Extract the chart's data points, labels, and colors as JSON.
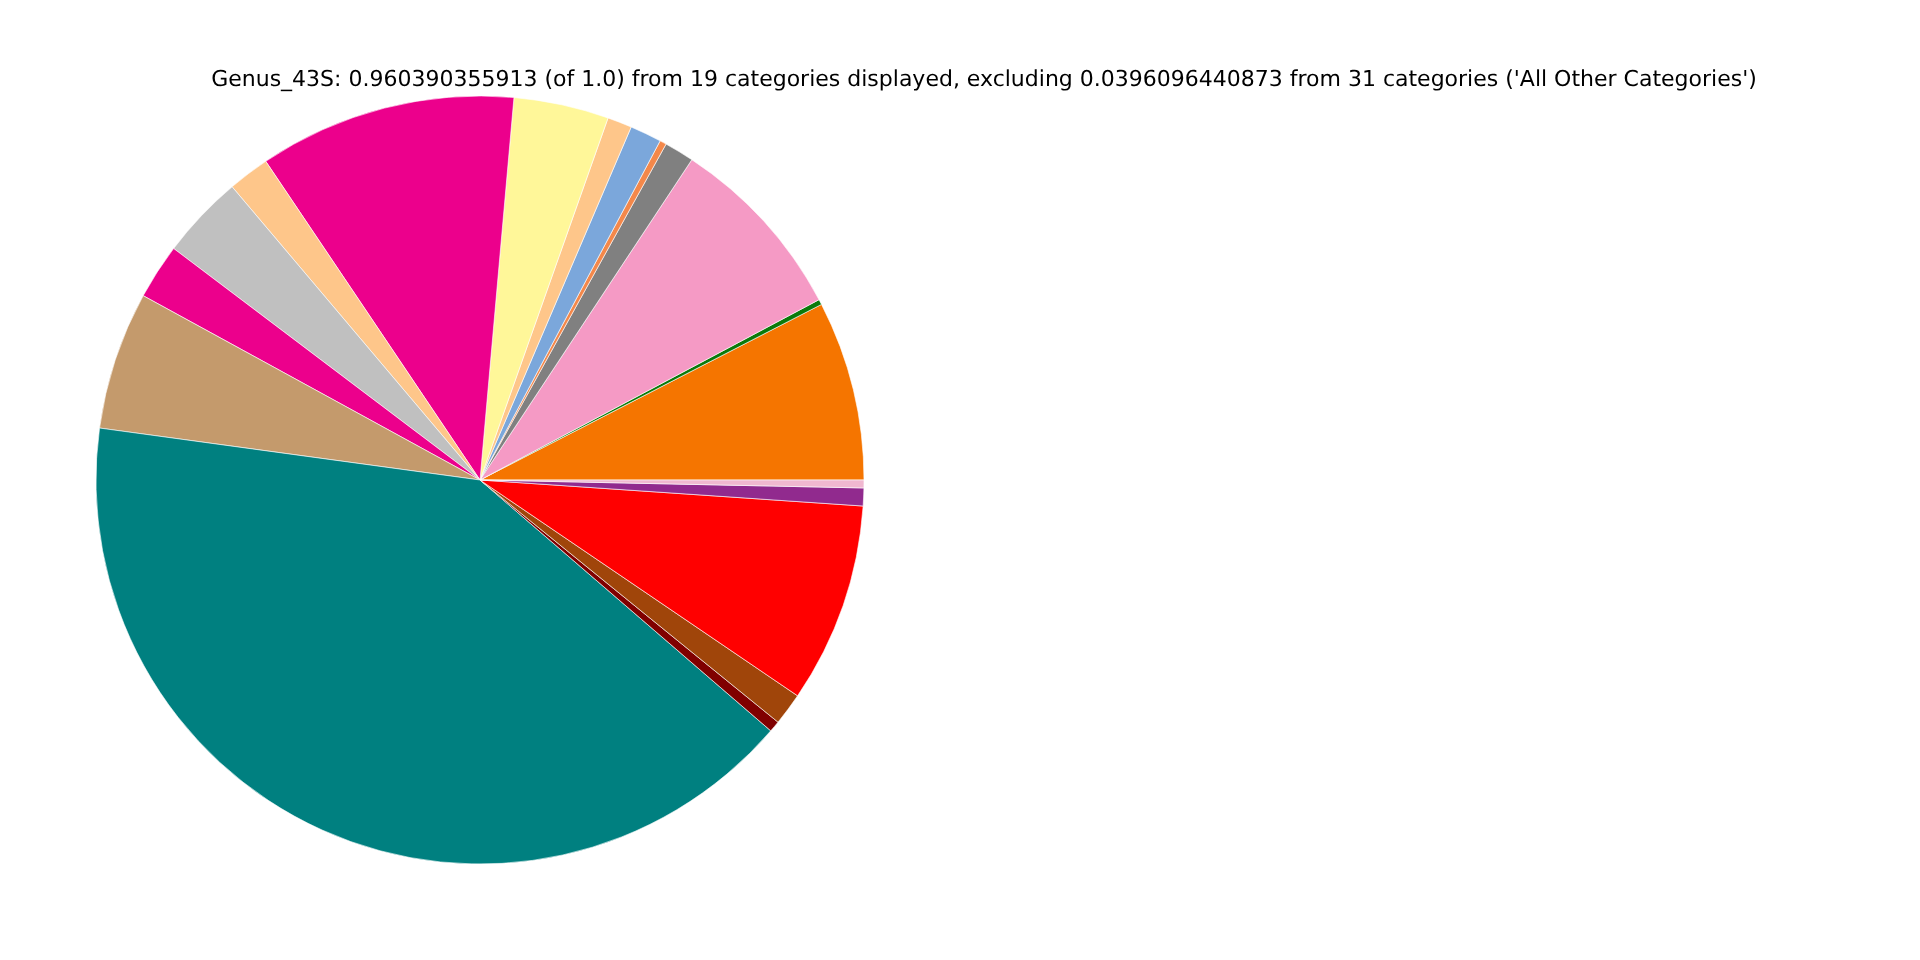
{
  "chart_data": {
    "type": "pie",
    "title": "Genus_43S: 0.960390355913 (of 1.0) from 19 categories displayed, excluding 0.0396096440873 from 31 categories ('All Other Categories')",
    "categories": [
      null,
      null,
      null,
      null,
      null,
      null,
      null,
      null,
      null,
      null,
      null,
      null,
      null,
      null,
      null,
      null,
      null,
      null,
      null
    ],
    "values": [
      7.56,
      0.22,
      7.92,
      1.25,
      0.28,
      1.33,
      1.03,
      4.0,
      10.83,
      1.75,
      3.53,
      2.33,
      5.81,
      40.83,
      0.47,
      1.36,
      8.42,
      0.75,
      0.33
    ],
    "colors": [
      "#f57500",
      "#0a7a0a",
      "#f59ac5",
      "#808080",
      "#f4884a",
      "#7ba7db",
      "#fec68a",
      "#fff799",
      "#ec008c",
      "#fec68a",
      "#c0c0c0",
      "#ec008c",
      "#c49a6c",
      "#008080",
      "#800000",
      "#a0450a",
      "#ff0000",
      "#912a8e",
      "#f0b8d0"
    ]
  }
}
